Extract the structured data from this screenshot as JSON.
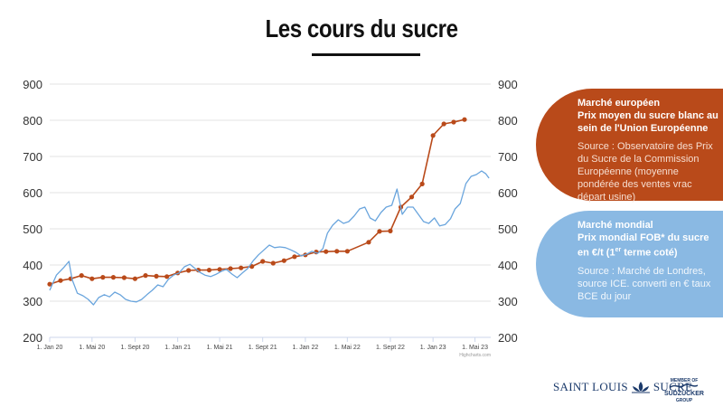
{
  "title": "Les cours du sucre",
  "panels": {
    "eu": {
      "head": [
        "Marché européen",
        "Prix moyen du sucre blanc au",
        "sein de l'Union Européenne"
      ],
      "source": "Source : Observatoire des Prix du Sucre de la Commission Européenne (moyenne pondérée des ventes vrac départ usine)"
    },
    "world": {
      "head": [
        "Marché mondial",
        "Prix mondial FOB* du sucre",
        "en €/t (1",
        "er",
        " terme coté)"
      ],
      "source": "Source : Marché de Londres, source ICE. converti en € taux BCE du jour"
    }
  },
  "credit": "Highcharts.com",
  "logo": {
    "name_left": "SAINT LOUIS",
    "name_right": "SUCRE",
    "sub_top": "MEMBER OF",
    "sub_mid": "SÜDZUCKER",
    "sub_bottom": "GROUP"
  },
  "colors": {
    "eu_series": "#b94a1a",
    "world_series": "#6aa5dd",
    "eu_panel": "#b94a1a",
    "world_panel": "#8ab9e3"
  },
  "chart_data": {
    "type": "line",
    "ylim": [
      200,
      900
    ],
    "y_ticks": [
      200,
      300,
      400,
      500,
      600,
      700,
      800,
      900
    ],
    "x_range": [
      "2020-01-01",
      "2023-06-15"
    ],
    "x_ticks": [
      {
        "label": "1. Jan 20",
        "date": "2020-01-01"
      },
      {
        "label": "1. Mai 20",
        "date": "2020-05-01"
      },
      {
        "label": "1. Sept 20",
        "date": "2020-09-01"
      },
      {
        "label": "1. Jan 21",
        "date": "2021-01-01"
      },
      {
        "label": "1. Mai 21",
        "date": "2021-05-01"
      },
      {
        "label": "1. Sept 21",
        "date": "2021-09-01"
      },
      {
        "label": "1. Jan 22",
        "date": "2022-01-01"
      },
      {
        "label": "1. Mai 22",
        "date": "2022-05-01"
      },
      {
        "label": "1. Sept 22",
        "date": "2022-09-01"
      },
      {
        "label": "1. Jan 23",
        "date": "2023-01-01"
      },
      {
        "label": "1. Mai 23",
        "date": "2023-05-01"
      }
    ],
    "grid": true,
    "series": [
      {
        "key": "eu",
        "markers": true,
        "points": [
          [
            "2020-01-01",
            347
          ],
          [
            "2020-02-01",
            357
          ],
          [
            "2020-03-01",
            362
          ],
          [
            "2020-04-01",
            371
          ],
          [
            "2020-05-01",
            362
          ],
          [
            "2020-06-01",
            366
          ],
          [
            "2020-07-01",
            366
          ],
          [
            "2020-08-01",
            365
          ],
          [
            "2020-09-01",
            362
          ],
          [
            "2020-10-01",
            371
          ],
          [
            "2020-11-01",
            369
          ],
          [
            "2020-12-01",
            368
          ],
          [
            "2021-01-01",
            378
          ],
          [
            "2021-02-01",
            385
          ],
          [
            "2021-03-01",
            386
          ],
          [
            "2021-04-01",
            386
          ],
          [
            "2021-05-01",
            388
          ],
          [
            "2021-06-01",
            390
          ],
          [
            "2021-07-01",
            392
          ],
          [
            "2021-08-01",
            396
          ],
          [
            "2021-09-01",
            410
          ],
          [
            "2021-10-01",
            405
          ],
          [
            "2021-11-01",
            412
          ],
          [
            "2021-12-01",
            423
          ],
          [
            "2022-01-01",
            428
          ],
          [
            "2022-02-01",
            436
          ],
          [
            "2022-03-01",
            437
          ],
          [
            "2022-04-01",
            438
          ],
          [
            "2022-05-01",
            438
          ],
          [
            "2022-07-01",
            463
          ],
          [
            "2022-08-01",
            493
          ],
          [
            "2022-09-01",
            494
          ],
          [
            "2022-10-01",
            560
          ],
          [
            "2022-11-01",
            588
          ],
          [
            "2022-12-01",
            624
          ],
          [
            "2023-01-01",
            758
          ],
          [
            "2023-02-01",
            790
          ],
          [
            "2023-03-01",
            795
          ],
          [
            "2023-04-01",
            802
          ]
        ]
      },
      {
        "key": "world",
        "markers": false,
        "points": [
          [
            "2020-01-01",
            330
          ],
          [
            "2020-01-20",
            372
          ],
          [
            "2020-02-10",
            393
          ],
          [
            "2020-02-25",
            410
          ],
          [
            "2020-03-05",
            360
          ],
          [
            "2020-03-20",
            322
          ],
          [
            "2020-04-05",
            315
          ],
          [
            "2020-04-20",
            305
          ],
          [
            "2020-05-05",
            290
          ],
          [
            "2020-05-20",
            310
          ],
          [
            "2020-06-05",
            318
          ],
          [
            "2020-06-20",
            312
          ],
          [
            "2020-07-05",
            325
          ],
          [
            "2020-07-20",
            318
          ],
          [
            "2020-08-05",
            305
          ],
          [
            "2020-08-20",
            300
          ],
          [
            "2020-09-05",
            298
          ],
          [
            "2020-09-20",
            305
          ],
          [
            "2020-10-05",
            318
          ],
          [
            "2020-10-20",
            330
          ],
          [
            "2020-11-05",
            345
          ],
          [
            "2020-11-20",
            340
          ],
          [
            "2020-12-05",
            360
          ],
          [
            "2020-12-20",
            372
          ],
          [
            "2021-01-05",
            378
          ],
          [
            "2021-01-20",
            395
          ],
          [
            "2021-02-05",
            402
          ],
          [
            "2021-02-20",
            390
          ],
          [
            "2021-03-05",
            380
          ],
          [
            "2021-03-20",
            372
          ],
          [
            "2021-04-05",
            368
          ],
          [
            "2021-04-20",
            374
          ],
          [
            "2021-05-05",
            382
          ],
          [
            "2021-05-20",
            388
          ],
          [
            "2021-06-05",
            375
          ],
          [
            "2021-06-20",
            365
          ],
          [
            "2021-07-05",
            378
          ],
          [
            "2021-07-20",
            390
          ],
          [
            "2021-08-05",
            412
          ],
          [
            "2021-08-20",
            428
          ],
          [
            "2021-09-05",
            442
          ],
          [
            "2021-09-20",
            455
          ],
          [
            "2021-10-05",
            448
          ],
          [
            "2021-10-20",
            450
          ],
          [
            "2021-11-05",
            448
          ],
          [
            "2021-11-20",
            442
          ],
          [
            "2021-12-05",
            435
          ],
          [
            "2021-12-20",
            425
          ],
          [
            "2022-01-05",
            430
          ],
          [
            "2022-01-20",
            438
          ],
          [
            "2022-02-05",
            432
          ],
          [
            "2022-02-20",
            445
          ],
          [
            "2022-03-05",
            488
          ],
          [
            "2022-03-20",
            510
          ],
          [
            "2022-04-05",
            525
          ],
          [
            "2022-04-20",
            515
          ],
          [
            "2022-05-05",
            520
          ],
          [
            "2022-05-20",
            535
          ],
          [
            "2022-06-05",
            555
          ],
          [
            "2022-06-20",
            560
          ],
          [
            "2022-07-05",
            530
          ],
          [
            "2022-07-20",
            522
          ],
          [
            "2022-08-05",
            545
          ],
          [
            "2022-08-20",
            560
          ],
          [
            "2022-09-05",
            565
          ],
          [
            "2022-09-20",
            610
          ],
          [
            "2022-10-05",
            540
          ],
          [
            "2022-10-20",
            560
          ],
          [
            "2022-11-05",
            560
          ],
          [
            "2022-11-20",
            540
          ],
          [
            "2022-12-05",
            520
          ],
          [
            "2022-12-20",
            515
          ],
          [
            "2023-01-05",
            530
          ],
          [
            "2023-01-20",
            508
          ],
          [
            "2023-02-05",
            512
          ],
          [
            "2023-02-20",
            528
          ],
          [
            "2023-03-05",
            555
          ],
          [
            "2023-03-20",
            570
          ],
          [
            "2023-04-05",
            625
          ],
          [
            "2023-04-20",
            645
          ],
          [
            "2023-05-05",
            650
          ],
          [
            "2023-05-20",
            660
          ],
          [
            "2023-06-01",
            652
          ],
          [
            "2023-06-10",
            640
          ]
        ]
      }
    ]
  }
}
